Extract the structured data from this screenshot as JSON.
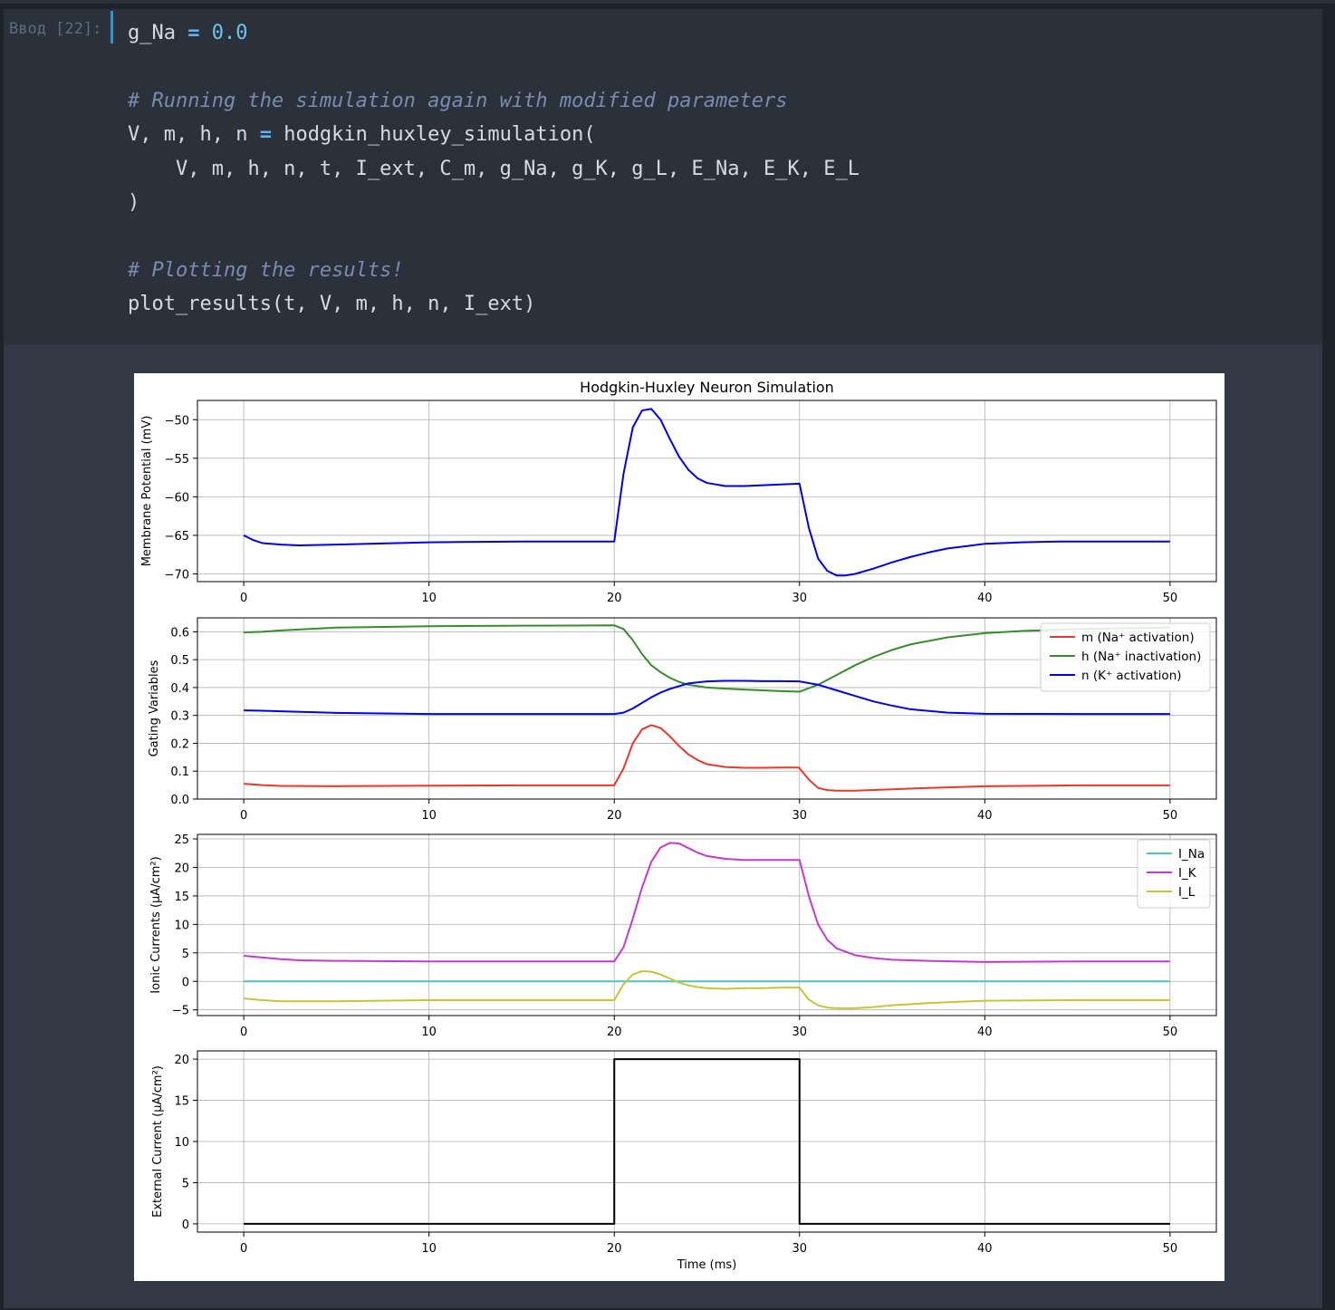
{
  "cell": {
    "prompt": "Ввод [22]:",
    "code_lines": [
      [
        {
          "t": "g_Na "
        },
        {
          "t": "=",
          "c": "op"
        },
        {
          "t": " "
        },
        {
          "t": "0.0",
          "c": "num"
        }
      ],
      [],
      [
        {
          "t": "# Running the simulation again with modified parameters",
          "c": "comment"
        }
      ],
      [
        {
          "t": "V, m, h, n "
        },
        {
          "t": "=",
          "c": "op"
        },
        {
          "t": " hodgkin_huxley_simulation("
        }
      ],
      [
        {
          "t": "    V, m, h, n, t, I_ext, C_m, g_Na, g_K, g_L, E_Na, E_K, E_L"
        }
      ],
      [
        {
          "t": ")"
        }
      ],
      [],
      [
        {
          "t": "# Plotting the results!",
          "c": "comment"
        }
      ],
      [
        {
          "t": "plot_results(t, V, m, h, n, I_ext)"
        }
      ]
    ]
  },
  "chart_data": [
    {
      "type": "line",
      "title": "Hodgkin-Huxley Neuron Simulation",
      "ylabel": "Membrane Potential (mV)",
      "xlabel": "",
      "xlim": [
        -2.5,
        52.5
      ],
      "ylim": [
        -71,
        -47.5
      ],
      "xticks": [
        0,
        10,
        20,
        30,
        40,
        50
      ],
      "yticks": [
        -70,
        -65,
        -60,
        -55,
        -50
      ],
      "grid": true,
      "legend": null,
      "series": [
        {
          "color": "#0000ee",
          "x": [
            0,
            0.5,
            1,
            2,
            3,
            5,
            10,
            15,
            19.99,
            20,
            20.5,
            21,
            21.5,
            22,
            22.5,
            23,
            23.5,
            24,
            24.5,
            25,
            26,
            27,
            28,
            29,
            29.99,
            30,
            30.5,
            31,
            31.5,
            32,
            32.5,
            33,
            34,
            35,
            36,
            37,
            38,
            39,
            40,
            42,
            44,
            46,
            48,
            50
          ],
          "y": [
            -65,
            -65.6,
            -66,
            -66.2,
            -66.3,
            -66.2,
            -65.9,
            -65.8,
            -65.8,
            -65.8,
            -57,
            -51,
            -48.8,
            -48.6,
            -50,
            -52.5,
            -54.8,
            -56.5,
            -57.6,
            -58.2,
            -58.6,
            -58.6,
            -58.5,
            -58.4,
            -58.3,
            -58.3,
            -64,
            -68,
            -69.6,
            -70.2,
            -70.2,
            -70,
            -69.3,
            -68.5,
            -67.8,
            -67.2,
            -66.7,
            -66.4,
            -66.1,
            -65.9,
            -65.8,
            -65.8,
            -65.8,
            -65.8
          ]
        }
      ]
    },
    {
      "type": "line",
      "ylabel": "Gating Variables",
      "xlabel": "",
      "xlim": [
        -2.5,
        52.5
      ],
      "ylim": [
        0,
        0.65
      ],
      "xticks": [
        0,
        10,
        20,
        30,
        40,
        50
      ],
      "yticks": [
        0.0,
        0.1,
        0.2,
        0.3,
        0.4,
        0.5,
        0.6
      ],
      "ytick_labels": [
        "0.0",
        "0.1",
        "0.2",
        "0.3",
        "0.4",
        "0.5",
        "0.6"
      ],
      "grid": true,
      "legend": "top-right",
      "series": [
        {
          "name": "m (Na⁺ activation)",
          "color": "#e8392b",
          "x": [
            0,
            1,
            2,
            5,
            10,
            15,
            19.99,
            20,
            20.5,
            21,
            21.5,
            22,
            22.5,
            23,
            23.5,
            24,
            24.5,
            25,
            26,
            27,
            28,
            29,
            29.99,
            30,
            30.5,
            31,
            31.5,
            32,
            33,
            35,
            37,
            40,
            45,
            50
          ],
          "y": [
            0.055,
            0.05,
            0.047,
            0.046,
            0.048,
            0.049,
            0.049,
            0.05,
            0.11,
            0.2,
            0.25,
            0.265,
            0.255,
            0.225,
            0.19,
            0.16,
            0.14,
            0.125,
            0.115,
            0.112,
            0.112,
            0.113,
            0.113,
            0.11,
            0.07,
            0.04,
            0.032,
            0.03,
            0.03,
            0.035,
            0.04,
            0.046,
            0.049,
            0.049
          ]
        },
        {
          "name": "h (Na⁺ inactivation)",
          "color": "#3a8a2e",
          "x": [
            0,
            1,
            2,
            5,
            10,
            15,
            19.99,
            20,
            20.5,
            21,
            21.5,
            22,
            22.5,
            23,
            23.5,
            24,
            25,
            26,
            27,
            28,
            29,
            29.99,
            30,
            31,
            32,
            33,
            34,
            35,
            36,
            38,
            40,
            42,
            45,
            50
          ],
          "y": [
            0.598,
            0.6,
            0.605,
            0.615,
            0.62,
            0.622,
            0.623,
            0.623,
            0.61,
            0.57,
            0.52,
            0.48,
            0.455,
            0.435,
            0.42,
            0.41,
            0.4,
            0.396,
            0.393,
            0.39,
            0.387,
            0.385,
            0.385,
            0.41,
            0.445,
            0.48,
            0.51,
            0.535,
            0.555,
            0.58,
            0.595,
            0.603,
            0.61,
            0.615
          ]
        },
        {
          "name": "n (K⁺ activation)",
          "color": "#0000ee",
          "x": [
            0,
            1,
            2,
            5,
            10,
            15,
            19.99,
            20,
            20.5,
            21,
            21.5,
            22,
            22.5,
            23,
            23.5,
            24,
            25,
            26,
            27,
            28,
            29,
            29.99,
            30,
            31,
            32,
            33,
            34,
            35,
            36,
            38,
            40,
            45,
            50
          ],
          "y": [
            0.318,
            0.317,
            0.315,
            0.309,
            0.305,
            0.305,
            0.305,
            0.305,
            0.31,
            0.325,
            0.345,
            0.365,
            0.382,
            0.395,
            0.405,
            0.415,
            0.422,
            0.424,
            0.424,
            0.423,
            0.423,
            0.422,
            0.422,
            0.41,
            0.39,
            0.37,
            0.35,
            0.335,
            0.322,
            0.31,
            0.306,
            0.305,
            0.305
          ]
        }
      ]
    },
    {
      "type": "line",
      "ylabel": "Ionic Currents (µA/cm²)",
      "xlabel": "",
      "xlim": [
        -2.5,
        52.5
      ],
      "ylim": [
        -6,
        25.8
      ],
      "xticks": [
        0,
        10,
        20,
        30,
        40,
        50
      ],
      "yticks": [
        -5,
        0,
        5,
        10,
        15,
        20,
        25
      ],
      "grid": true,
      "legend": "top-right",
      "series": [
        {
          "name": "I_Na",
          "color": "#4ec3c0",
          "x": [
            0,
            50
          ],
          "y": [
            0,
            0
          ]
        },
        {
          "name": "I_K",
          "color": "#c13bd1",
          "x": [
            0,
            1,
            2,
            3,
            5,
            10,
            15,
            19.99,
            20,
            20.5,
            21,
            21.5,
            22,
            22.5,
            23,
            23.5,
            24,
            24.5,
            25,
            26,
            27,
            28,
            29,
            29.99,
            30,
            30.5,
            31,
            31.5,
            32,
            33,
            34,
            35,
            37,
            40,
            45,
            50
          ],
          "y": [
            4.5,
            4.2,
            3.9,
            3.7,
            3.6,
            3.5,
            3.5,
            3.5,
            3.5,
            6,
            11,
            16.5,
            21,
            23.5,
            24.3,
            24.2,
            23.4,
            22.6,
            22,
            21.5,
            21.3,
            21.3,
            21.3,
            21.3,
            21.3,
            15,
            10,
            7.3,
            5.8,
            4.6,
            4.1,
            3.8,
            3.6,
            3.4,
            3.5,
            3.5
          ]
        },
        {
          "name": "I_L",
          "color": "#c7c43a",
          "x": [
            0,
            1,
            2,
            3,
            5,
            10,
            15,
            19.99,
            20,
            20.5,
            21,
            21.5,
            22,
            22.5,
            23,
            23.5,
            24,
            24.5,
            25,
            26,
            27,
            28,
            29,
            29.99,
            30,
            30.5,
            31,
            31.5,
            32,
            33,
            34,
            35,
            37,
            40,
            45,
            50
          ],
          "y": [
            -3,
            -3.3,
            -3.5,
            -3.5,
            -3.5,
            -3.3,
            -3.3,
            -3.3,
            -3.3,
            -0.5,
            1.2,
            1.8,
            1.7,
            1.2,
            0.5,
            -0.2,
            -0.7,
            -1,
            -1.2,
            -1.3,
            -1.2,
            -1.2,
            -1.1,
            -1.1,
            -1.1,
            -3.2,
            -4.2,
            -4.6,
            -4.7,
            -4.7,
            -4.5,
            -4.2,
            -3.8,
            -3.4,
            -3.3,
            -3.3
          ]
        }
      ]
    },
    {
      "type": "line",
      "ylabel": "External Current (µA/cm²)",
      "xlabel": "Time (ms)",
      "xlim": [
        -2.5,
        52.5
      ],
      "ylim": [
        -1,
        21
      ],
      "xticks": [
        0,
        10,
        20,
        30,
        40,
        50
      ],
      "yticks": [
        0,
        5,
        10,
        15,
        20
      ],
      "grid": true,
      "legend": null,
      "series": [
        {
          "color": "#000000",
          "x": [
            0,
            20,
            20,
            30,
            30,
            50
          ],
          "y": [
            0,
            0,
            20,
            20,
            0,
            0
          ]
        }
      ]
    }
  ]
}
